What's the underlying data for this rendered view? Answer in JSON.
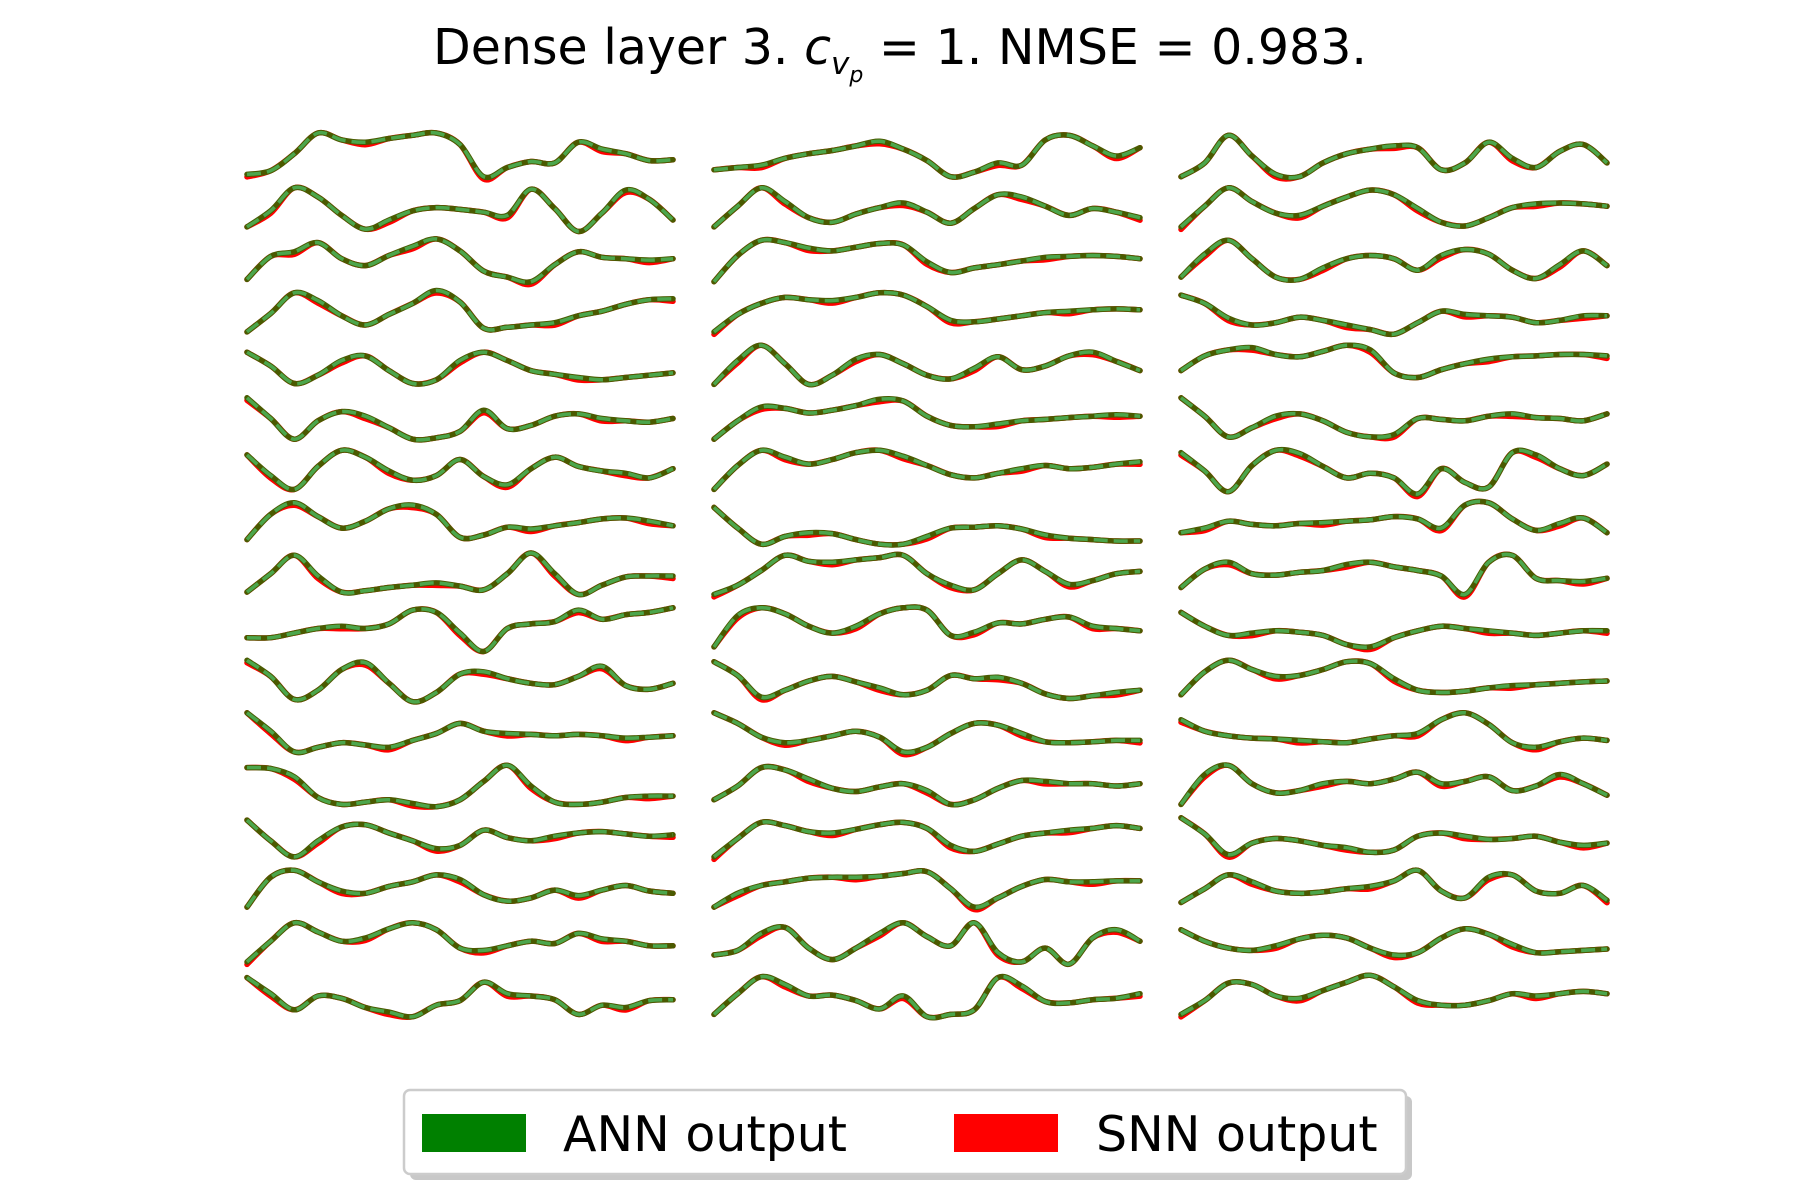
{
  "chart_data": {
    "type": "line",
    "title": {
      "prefix": "Dense layer 3. ",
      "symbol": "c",
      "sub": "v",
      "subsub": "p",
      "suffix": " = 1. NMSE = 0.983."
    },
    "legend": {
      "placement": "bottom-center",
      "entries": [
        {
          "label": "ANN output",
          "color": "#008000"
        },
        {
          "label": "SNN output",
          "color": "#ff0000"
        }
      ]
    },
    "grid": false,
    "axes_visible": false,
    "style": {
      "ann_color": "#4a5a00",
      "ann_overlay_dash_color": "#4ca64c",
      "snn_color": "#ff0000"
    },
    "columns": [
      {
        "traces": [
          [
            0.1,
            0.18,
            0.55,
            1.0,
            0.85,
            0.8,
            0.88,
            0.95,
            1.0,
            0.75,
            0.05,
            0.25,
            0.38,
            0.35,
            0.8,
            0.65,
            0.55,
            0.4,
            0.42
          ],
          [
            0.1,
            0.45,
            0.95,
            0.75,
            0.35,
            0.05,
            0.25,
            0.45,
            0.52,
            0.48,
            0.42,
            0.35,
            0.92,
            0.5,
            0.0,
            0.4,
            0.9,
            0.7,
            0.25
          ],
          [
            0.1,
            0.6,
            0.7,
            0.9,
            0.55,
            0.4,
            0.62,
            0.82,
            0.98,
            0.72,
            0.28,
            0.15,
            0.05,
            0.42,
            0.7,
            0.58,
            0.55,
            0.52,
            0.55
          ],
          [
            0.1,
            0.5,
            0.95,
            0.78,
            0.45,
            0.25,
            0.48,
            0.72,
            1.0,
            0.75,
            0.18,
            0.2,
            0.25,
            0.3,
            0.45,
            0.55,
            0.7,
            0.8,
            0.82
          ],
          [
            0.8,
            0.5,
            0.12,
            0.3,
            0.62,
            0.72,
            0.4,
            0.12,
            0.2,
            0.62,
            0.8,
            0.62,
            0.4,
            0.32,
            0.25,
            0.2,
            0.25,
            0.3,
            0.35
          ],
          [
            0.95,
            0.5,
            0.05,
            0.45,
            0.65,
            0.55,
            0.3,
            0.05,
            0.08,
            0.22,
            0.68,
            0.28,
            0.35,
            0.55,
            0.6,
            0.5,
            0.45,
            0.42,
            0.5
          ],
          [
            0.85,
            0.4,
            0.1,
            0.6,
            0.95,
            0.8,
            0.5,
            0.3,
            0.4,
            0.75,
            0.38,
            0.2,
            0.55,
            0.8,
            0.6,
            0.5,
            0.45,
            0.35,
            0.55
          ],
          [
            0.15,
            0.7,
            0.95,
            0.65,
            0.4,
            0.55,
            0.82,
            0.9,
            0.7,
            0.2,
            0.25,
            0.42,
            0.38,
            0.45,
            0.52,
            0.6,
            0.62,
            0.55,
            0.45
          ],
          [
            0.15,
            0.55,
            0.95,
            0.5,
            0.15,
            0.18,
            0.25,
            0.3,
            0.35,
            0.28,
            0.2,
            0.55,
            1.0,
            0.55,
            0.1,
            0.3,
            0.48,
            0.5,
            0.5
          ],
          [
            0.3,
            0.3,
            0.4,
            0.5,
            0.55,
            0.5,
            0.6,
            0.9,
            0.85,
            0.4,
            0.0,
            0.5,
            0.6,
            0.65,
            0.9,
            0.7,
            0.8,
            0.85,
            0.95
          ],
          [
            0.95,
            0.6,
            0.1,
            0.3,
            0.75,
            0.9,
            0.45,
            0.05,
            0.25,
            0.65,
            0.7,
            0.55,
            0.45,
            0.42,
            0.6,
            0.82,
            0.4,
            0.32,
            0.45
          ],
          [
            0.95,
            0.55,
            0.1,
            0.2,
            0.3,
            0.25,
            0.2,
            0.35,
            0.5,
            0.72,
            0.55,
            0.5,
            0.48,
            0.45,
            0.48,
            0.45,
            0.4,
            0.42,
            0.45
          ],
          [
            0.9,
            0.88,
            0.7,
            0.25,
            0.1,
            0.15,
            0.2,
            0.12,
            0.05,
            0.2,
            0.6,
            0.95,
            0.5,
            0.15,
            0.1,
            0.15,
            0.25,
            0.28,
            0.28
          ],
          [
            0.9,
            0.45,
            0.1,
            0.45,
            0.75,
            0.8,
            0.62,
            0.45,
            0.28,
            0.35,
            0.68,
            0.52,
            0.45,
            0.55,
            0.62,
            0.65,
            0.6,
            0.55,
            0.58
          ],
          [
            0.15,
            0.8,
            0.95,
            0.7,
            0.5,
            0.45,
            0.6,
            0.7,
            0.85,
            0.75,
            0.42,
            0.28,
            0.35,
            0.52,
            0.4,
            0.52,
            0.62,
            0.5,
            0.45
          ],
          [
            0.1,
            0.55,
            0.95,
            0.75,
            0.55,
            0.62,
            0.82,
            0.95,
            0.8,
            0.4,
            0.35,
            0.45,
            0.55,
            0.5,
            0.72,
            0.6,
            0.55,
            0.45,
            0.45
          ],
          [
            0.9,
            0.55,
            0.2,
            0.5,
            0.45,
            0.25,
            0.15,
            0.05,
            0.3,
            0.4,
            0.8,
            0.55,
            0.5,
            0.42,
            0.1,
            0.3,
            0.25,
            0.4,
            0.42
          ]
        ]
      },
      {
        "traces": [
          [
            0.2,
            0.25,
            0.3,
            0.45,
            0.55,
            0.62,
            0.72,
            0.82,
            0.65,
            0.4,
            0.05,
            0.15,
            0.35,
            0.3,
            0.85,
            0.95,
            0.72,
            0.5,
            0.68
          ],
          [
            0.1,
            0.55,
            0.95,
            0.65,
            0.3,
            0.2,
            0.38,
            0.52,
            0.62,
            0.42,
            0.18,
            0.5,
            0.8,
            0.75,
            0.55,
            0.35,
            0.5,
            0.42,
            0.3
          ],
          [
            0.05,
            0.62,
            0.95,
            0.9,
            0.78,
            0.72,
            0.8,
            0.88,
            0.85,
            0.48,
            0.25,
            0.35,
            0.42,
            0.5,
            0.58,
            0.6,
            0.62,
            0.6,
            0.55
          ],
          [
            0.1,
            0.48,
            0.72,
            0.85,
            0.8,
            0.78,
            0.85,
            0.95,
            0.9,
            0.65,
            0.35,
            0.32,
            0.38,
            0.45,
            0.52,
            0.55,
            0.58,
            0.6,
            0.58
          ],
          [
            0.1,
            0.62,
            0.95,
            0.55,
            0.1,
            0.3,
            0.65,
            0.75,
            0.55,
            0.3,
            0.22,
            0.45,
            0.7,
            0.42,
            0.5,
            0.72,
            0.8,
            0.6,
            0.4
          ],
          [
            0.05,
            0.45,
            0.75,
            0.72,
            0.62,
            0.68,
            0.78,
            0.92,
            0.88,
            0.55,
            0.35,
            0.32,
            0.38,
            0.45,
            0.48,
            0.52,
            0.55,
            0.58,
            0.55
          ],
          [
            0.1,
            0.62,
            0.95,
            0.8,
            0.65,
            0.75,
            0.9,
            0.95,
            0.82,
            0.62,
            0.42,
            0.35,
            0.45,
            0.55,
            0.62,
            0.55,
            0.58,
            0.65,
            0.7
          ],
          [
            0.85,
            0.4,
            0.05,
            0.22,
            0.3,
            0.28,
            0.15,
            0.05,
            0.05,
            0.22,
            0.4,
            0.42,
            0.45,
            0.38,
            0.25,
            0.18,
            0.15,
            0.12,
            0.12
          ],
          [
            0.1,
            0.3,
            0.62,
            0.95,
            0.82,
            0.8,
            0.85,
            0.9,
            0.95,
            0.55,
            0.3,
            0.2,
            0.55,
            0.85,
            0.6,
            0.32,
            0.4,
            0.55,
            0.6
          ],
          [
            0.1,
            0.78,
            0.95,
            0.82,
            0.55,
            0.4,
            0.55,
            0.82,
            0.95,
            0.9,
            0.35,
            0.42,
            0.62,
            0.6,
            0.7,
            0.75,
            0.55,
            0.5,
            0.45
          ],
          [
            0.92,
            0.62,
            0.15,
            0.3,
            0.5,
            0.6,
            0.48,
            0.35,
            0.2,
            0.3,
            0.62,
            0.55,
            0.58,
            0.45,
            0.22,
            0.12,
            0.18,
            0.25,
            0.3
          ],
          [
            0.95,
            0.72,
            0.42,
            0.3,
            0.35,
            0.45,
            0.55,
            0.42,
            0.1,
            0.2,
            0.5,
            0.72,
            0.68,
            0.5,
            0.32,
            0.3,
            0.32,
            0.35,
            0.35
          ],
          [
            0.2,
            0.5,
            0.9,
            0.85,
            0.65,
            0.45,
            0.38,
            0.48,
            0.55,
            0.4,
            0.1,
            0.2,
            0.45,
            0.62,
            0.6,
            0.55,
            0.55,
            0.5,
            0.55
          ],
          [
            0.1,
            0.5,
            0.85,
            0.78,
            0.65,
            0.62,
            0.7,
            0.8,
            0.85,
            0.72,
            0.35,
            0.22,
            0.38,
            0.55,
            0.62,
            0.68,
            0.72,
            0.78,
            0.72
          ],
          [
            0.15,
            0.45,
            0.62,
            0.7,
            0.78,
            0.8,
            0.8,
            0.82,
            0.88,
            0.92,
            0.55,
            0.15,
            0.35,
            0.6,
            0.75,
            0.7,
            0.7,
            0.72,
            0.72
          ],
          [
            0.25,
            0.35,
            0.72,
            0.85,
            0.4,
            0.15,
            0.4,
            0.72,
            0.95,
            0.65,
            0.45,
            0.95,
            0.3,
            0.1,
            0.4,
            0.05,
            0.62,
            0.8,
            0.55
          ],
          [
            0.1,
            0.55,
            0.92,
            0.75,
            0.5,
            0.52,
            0.4,
            0.22,
            0.5,
            0.05,
            0.1,
            0.2,
            0.9,
            0.72,
            0.38,
            0.35,
            0.42,
            0.45,
            0.55
          ]
        ]
      },
      {
        "traces": [
          [
            0.05,
            0.35,
            0.95,
            0.5,
            0.1,
            0.05,
            0.35,
            0.55,
            0.65,
            0.72,
            0.68,
            0.2,
            0.35,
            0.8,
            0.45,
            0.25,
            0.6,
            0.75,
            0.35
          ],
          [
            0.1,
            0.55,
            0.95,
            0.65,
            0.4,
            0.35,
            0.55,
            0.75,
            0.9,
            0.8,
            0.5,
            0.2,
            0.12,
            0.3,
            0.52,
            0.6,
            0.62,
            0.6,
            0.55
          ],
          [
            0.15,
            0.65,
            0.95,
            0.55,
            0.15,
            0.1,
            0.35,
            0.55,
            0.62,
            0.55,
            0.3,
            0.62,
            0.75,
            0.65,
            0.3,
            0.12,
            0.42,
            0.72,
            0.4
          ],
          [
            0.9,
            0.72,
            0.4,
            0.25,
            0.3,
            0.42,
            0.35,
            0.25,
            0.15,
            0.05,
            0.3,
            0.55,
            0.48,
            0.45,
            0.42,
            0.3,
            0.35,
            0.45,
            0.45
          ],
          [
            0.4,
            0.72,
            0.85,
            0.9,
            0.75,
            0.7,
            0.82,
            0.95,
            0.85,
            0.35,
            0.25,
            0.42,
            0.55,
            0.65,
            0.7,
            0.72,
            0.75,
            0.75,
            0.72
          ],
          [
            0.95,
            0.55,
            0.1,
            0.3,
            0.55,
            0.6,
            0.45,
            0.2,
            0.1,
            0.15,
            0.5,
            0.48,
            0.45,
            0.55,
            0.6,
            0.52,
            0.5,
            0.45,
            0.6
          ],
          [
            0.9,
            0.5,
            0.05,
            0.62,
            0.95,
            0.88,
            0.6,
            0.35,
            0.45,
            0.35,
            0.0,
            0.55,
            0.25,
            0.15,
            0.9,
            0.85,
            0.55,
            0.4,
            0.65
          ],
          [
            0.3,
            0.4,
            0.55,
            0.48,
            0.45,
            0.5,
            0.52,
            0.55,
            0.58,
            0.65,
            0.6,
            0.4,
            0.9,
            0.95,
            0.6,
            0.35,
            0.5,
            0.62,
            0.3
          ],
          [
            0.25,
            0.65,
            0.8,
            0.55,
            0.52,
            0.58,
            0.62,
            0.75,
            0.8,
            0.7,
            0.62,
            0.5,
            0.1,
            0.8,
            0.95,
            0.45,
            0.4,
            0.38,
            0.45
          ],
          [
            0.85,
            0.55,
            0.35,
            0.4,
            0.45,
            0.42,
            0.35,
            0.15,
            0.1,
            0.3,
            0.45,
            0.55,
            0.5,
            0.45,
            0.4,
            0.35,
            0.4,
            0.45,
            0.45
          ],
          [
            0.2,
            0.7,
            0.95,
            0.75,
            0.6,
            0.62,
            0.75,
            0.92,
            0.88,
            0.55,
            0.3,
            0.25,
            0.28,
            0.35,
            0.4,
            0.42,
            0.45,
            0.48,
            0.5
          ],
          [
            0.8,
            0.55,
            0.45,
            0.4,
            0.38,
            0.35,
            0.32,
            0.3,
            0.38,
            0.45,
            0.5,
            0.8,
            0.95,
            0.7,
            0.3,
            0.2,
            0.32,
            0.4,
            0.35
          ],
          [
            0.1,
            0.75,
            0.95,
            0.55,
            0.35,
            0.4,
            0.55,
            0.6,
            0.55,
            0.65,
            0.8,
            0.55,
            0.6,
            0.7,
            0.4,
            0.5,
            0.75,
            0.55,
            0.3
          ],
          [
            0.95,
            0.6,
            0.15,
            0.4,
            0.5,
            0.45,
            0.35,
            0.3,
            0.2,
            0.25,
            0.55,
            0.62,
            0.55,
            0.48,
            0.5,
            0.55,
            0.42,
            0.35,
            0.4
          ],
          [
            0.25,
            0.55,
            0.85,
            0.7,
            0.5,
            0.45,
            0.48,
            0.55,
            0.6,
            0.72,
            0.95,
            0.5,
            0.35,
            0.8,
            0.85,
            0.5,
            0.45,
            0.62,
            0.3
          ],
          [
            0.8,
            0.55,
            0.4,
            0.35,
            0.45,
            0.6,
            0.68,
            0.62,
            0.4,
            0.25,
            0.3,
            0.62,
            0.82,
            0.7,
            0.48,
            0.3,
            0.32,
            0.35,
            0.38
          ],
          [
            0.1,
            0.4,
            0.78,
            0.75,
            0.5,
            0.45,
            0.62,
            0.8,
            0.95,
            0.7,
            0.4,
            0.3,
            0.3,
            0.4,
            0.55,
            0.5,
            0.55,
            0.6,
            0.55
          ]
        ]
      }
    ]
  }
}
